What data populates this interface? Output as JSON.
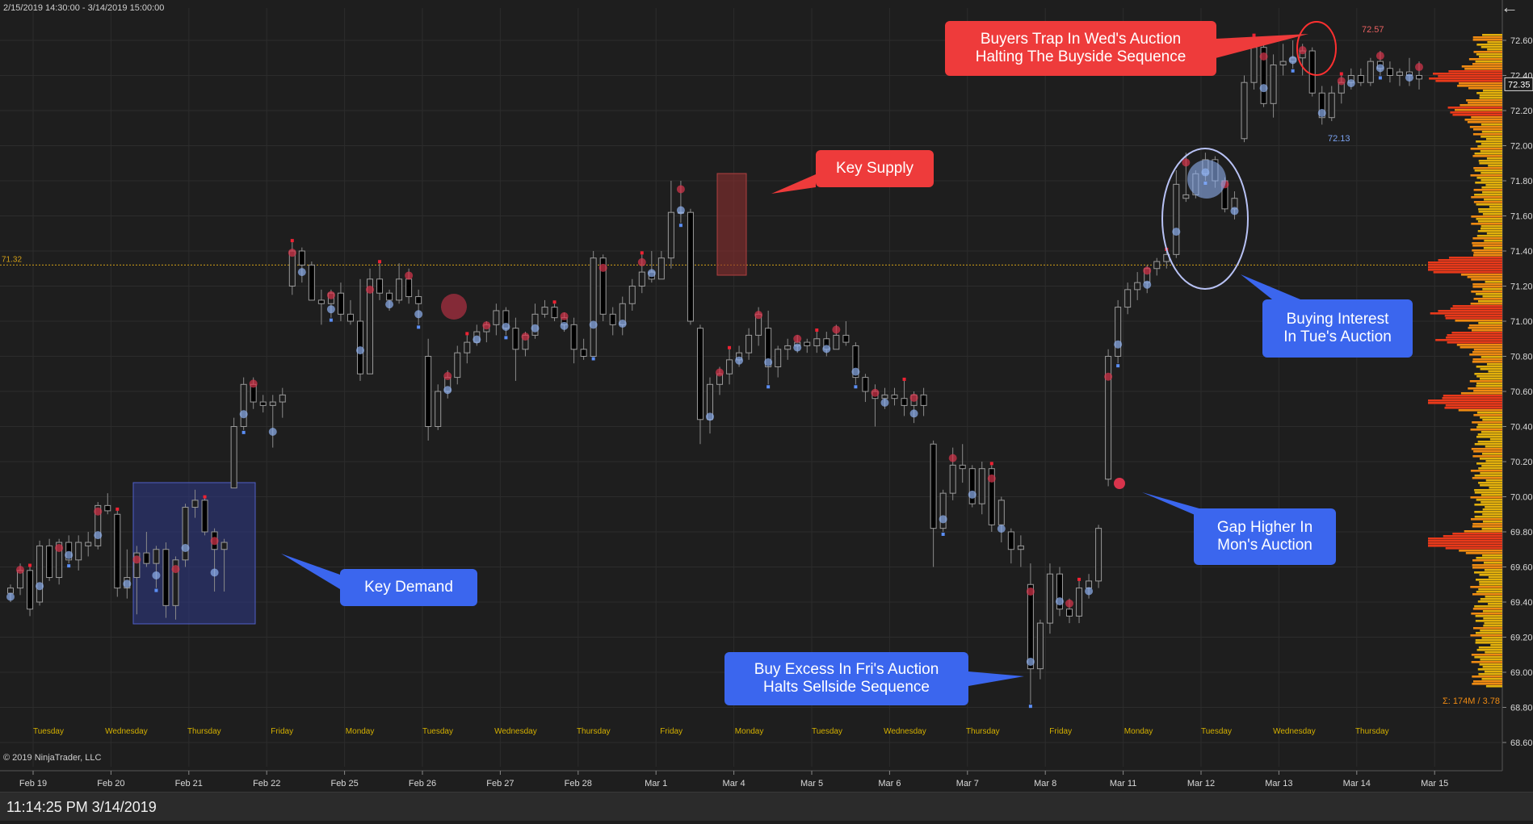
{
  "header": {
    "range_label": "2/15/2019 14:30:00 - 3/14/2019 15:00:00",
    "back_icon": "arrow-left-icon"
  },
  "footer": {
    "copyright": "© 2019 NinjaTrader, LLC",
    "status_time": "11:14:25 PM 3/14/2019"
  },
  "colors": {
    "background": "#1e1e1e",
    "grid": "#2c2c2c",
    "bull_body": "#1e1e1e",
    "bear_body": "#000000",
    "wick": "#8a8a8a",
    "buy_bubble": "#8fb0f0",
    "sell_bubble": "#d8344c",
    "reference_line": "#d4a017",
    "day_label": "#d4b000",
    "callout_red": "#ee3b3b",
    "callout_blue": "#3b66ee"
  },
  "chart_data": {
    "type": "candlestick",
    "title": "",
    "ylim": [
      68.55,
      72.75
    ],
    "y_ticks": [
      "72.60",
      "72.40",
      "72.20",
      "72.00",
      "71.80",
      "71.60",
      "71.40",
      "71.20",
      "71.00",
      "70.80",
      "70.60",
      "70.40",
      "70.20",
      "70.00",
      "69.80",
      "69.60",
      "69.40",
      "69.20",
      "69.00",
      "68.80",
      "68.60"
    ],
    "current_price": "72.35",
    "reference_line": {
      "value": 71.32,
      "label": "71.32"
    },
    "date_labels": [
      "Feb 19",
      "Feb 20",
      "Feb 21",
      "Feb 22",
      "Feb 25",
      "Feb 26",
      "Feb 27",
      "Feb 28",
      "Mar 1",
      "Mar 4",
      "Mar 5",
      "Mar 6",
      "Mar 7",
      "Mar 8",
      "Mar 11",
      "Mar 12",
      "Mar 13",
      "Mar 14",
      "Mar 15"
    ],
    "day_labels": [
      "Tuesday",
      "Wednesday",
      "Thursday",
      "Friday",
      "Monday",
      "Tuesday",
      "Wednesday",
      "Thursday",
      "Friday",
      "Monday",
      "Tuesday",
      "Wednesday",
      "Thursday",
      "Friday",
      "Monday",
      "Tuesday",
      "Wednesday",
      "Thursday"
    ],
    "annotations": {
      "high_label": "72.57",
      "low_label": "72.13",
      "volume_label": "Σ: 174M / 3.78"
    },
    "candles": [
      [
        69.45,
        69.5,
        69.4,
        69.48
      ],
      [
        69.48,
        69.62,
        69.44,
        69.58
      ],
      [
        69.58,
        69.6,
        69.32,
        69.36
      ],
      [
        69.4,
        69.75,
        69.38,
        69.72
      ],
      [
        69.72,
        69.76,
        69.52,
        69.54
      ],
      [
        69.54,
        69.76,
        69.5,
        69.74
      ],
      [
        69.74,
        69.78,
        69.62,
        69.64
      ],
      [
        69.64,
        69.78,
        69.58,
        69.74
      ],
      [
        69.72,
        69.8,
        69.66,
        69.74
      ],
      [
        69.72,
        69.97,
        69.7,
        69.95
      ],
      [
        69.95,
        70.02,
        69.9,
        69.92
      ],
      [
        69.9,
        69.92,
        69.43,
        69.48
      ],
      [
        69.48,
        69.7,
        69.42,
        69.54
      ],
      [
        69.54,
        69.72,
        69.33,
        69.68
      ],
      [
        69.68,
        69.8,
        69.6,
        69.62
      ],
      [
        69.62,
        69.72,
        69.48,
        69.7
      ],
      [
        69.7,
        69.74,
        69.31,
        69.38
      ],
      [
        69.38,
        69.66,
        69.3,
        69.64
      ],
      [
        69.64,
        69.96,
        69.6,
        69.94
      ],
      [
        69.94,
        70.04,
        69.88,
        69.98
      ],
      [
        69.98,
        69.99,
        69.78,
        69.8
      ],
      [
        69.8,
        69.82,
        69.46,
        69.7
      ],
      [
        69.7,
        69.76,
        69.46,
        69.74
      ],
      [
        70.05,
        70.45,
        70.05,
        70.4
      ],
      [
        70.4,
        70.68,
        70.38,
        70.64
      ],
      [
        70.64,
        70.68,
        70.5,
        70.54
      ],
      [
        70.54,
        70.58,
        70.48,
        70.52
      ],
      [
        70.52,
        70.58,
        70.28,
        70.54
      ],
      [
        70.54,
        70.62,
        70.45,
        70.58
      ],
      [
        71.2,
        71.45,
        71.15,
        71.4
      ],
      [
        71.4,
        71.42,
        71.22,
        71.32
      ],
      [
        71.32,
        71.34,
        71.12,
        71.12
      ],
      [
        71.12,
        71.18,
        70.98,
        71.1
      ],
      [
        71.1,
        71.18,
        71.02,
        71.16
      ],
      [
        71.16,
        71.22,
        71.0,
        71.04
      ],
      [
        71.04,
        71.12,
        70.98,
        71.0
      ],
      [
        71.0,
        71.24,
        70.66,
        70.7
      ],
      [
        70.7,
        71.3,
        70.7,
        71.24
      ],
      [
        71.24,
        71.33,
        71.12,
        71.16
      ],
      [
        71.16,
        71.18,
        71.06,
        71.12
      ],
      [
        71.12,
        71.33,
        71.1,
        71.24
      ],
      [
        71.24,
        71.3,
        71.1,
        71.14
      ],
      [
        71.14,
        71.18,
        70.98,
        71.1
      ],
      [
        70.8,
        70.9,
        70.32,
        70.4
      ],
      [
        70.4,
        70.64,
        70.38,
        70.6
      ],
      [
        70.6,
        70.72,
        70.56,
        70.68
      ],
      [
        70.68,
        70.86,
        70.64,
        70.82
      ],
      [
        70.82,
        70.92,
        70.76,
        70.88
      ],
      [
        70.88,
        70.98,
        70.86,
        70.94
      ],
      [
        70.94,
        71.0,
        70.88,
        70.98
      ],
      [
        70.98,
        71.1,
        70.92,
        71.06
      ],
      [
        71.06,
        71.08,
        70.92,
        70.96
      ],
      [
        70.96,
        71.02,
        70.66,
        70.84
      ],
      [
        70.84,
        70.94,
        70.8,
        70.92
      ],
      [
        70.92,
        71.1,
        70.9,
        71.04
      ],
      [
        71.04,
        71.12,
        71.02,
        71.08
      ],
      [
        71.08,
        71.1,
        71.0,
        71.02
      ],
      [
        71.02,
        71.05,
        70.94,
        70.98
      ],
      [
        70.98,
        71.02,
        70.76,
        70.84
      ],
      [
        70.84,
        70.9,
        70.78,
        70.8
      ],
      [
        70.8,
        71.4,
        70.8,
        71.36
      ],
      [
        71.36,
        71.38,
        71.0,
        71.04
      ],
      [
        71.04,
        71.08,
        70.92,
        70.98
      ],
      [
        70.98,
        71.14,
        70.92,
        71.1
      ],
      [
        71.1,
        71.24,
        71.06,
        71.2
      ],
      [
        71.2,
        71.38,
        71.16,
        71.28
      ],
      [
        71.28,
        71.4,
        71.22,
        71.24
      ],
      [
        71.24,
        71.4,
        71.28,
        71.36
      ],
      [
        71.36,
        71.8,
        71.3,
        71.62
      ],
      [
        71.62,
        71.8,
        71.56,
        71.62
      ],
      [
        71.62,
        71.64,
        70.98,
        71.0
      ],
      [
        70.96,
        70.98,
        70.3,
        70.44
      ],
      [
        70.44,
        70.68,
        70.36,
        70.64
      ],
      [
        70.64,
        70.74,
        70.58,
        70.7
      ],
      [
        70.7,
        70.84,
        70.64,
        70.78
      ],
      [
        70.78,
        70.86,
        70.74,
        70.82
      ],
      [
        70.82,
        70.96,
        70.78,
        70.92
      ],
      [
        70.92,
        71.08,
        70.86,
        71.04
      ],
      [
        70.96,
        71.06,
        70.64,
        70.74
      ],
      [
        70.74,
        70.86,
        70.68,
        70.84
      ],
      [
        70.84,
        70.9,
        70.78,
        70.86
      ],
      [
        70.86,
        70.92,
        70.82,
        70.88
      ],
      [
        70.88,
        70.9,
        70.82,
        70.86
      ],
      [
        70.86,
        70.94,
        70.82,
        70.9
      ],
      [
        70.9,
        70.94,
        70.8,
        70.84
      ],
      [
        70.84,
        70.98,
        70.84,
        70.92
      ],
      [
        70.92,
        71.0,
        70.86,
        70.88
      ],
      [
        70.86,
        70.88,
        70.64,
        70.68
      ],
      [
        70.68,
        70.7,
        70.54,
        70.6
      ],
      [
        70.6,
        70.64,
        70.4,
        70.56
      ],
      [
        70.56,
        70.62,
        70.5,
        70.58
      ],
      [
        70.58,
        70.62,
        70.52,
        70.56
      ],
      [
        70.56,
        70.66,
        70.46,
        70.52
      ],
      [
        70.52,
        70.6,
        70.42,
        70.58
      ],
      [
        70.58,
        70.62,
        70.46,
        70.52
      ],
      [
        70.3,
        70.32,
        69.6,
        69.82
      ],
      [
        69.82,
        70.04,
        69.8,
        70.02
      ],
      [
        70.02,
        70.28,
        69.98,
        70.18
      ],
      [
        70.18,
        70.3,
        70.08,
        70.16
      ],
      [
        70.16,
        70.18,
        69.94,
        69.96
      ],
      [
        69.96,
        70.2,
        69.9,
        70.16
      ],
      [
        70.16,
        70.18,
        69.8,
        69.84
      ],
      [
        69.84,
        70.0,
        69.74,
        69.98
      ],
      [
        69.8,
        69.82,
        69.62,
        69.7
      ],
      [
        69.7,
        69.78,
        69.6,
        69.72
      ],
      [
        69.5,
        69.62,
        68.82,
        69.02
      ],
      [
        69.02,
        69.3,
        68.96,
        69.28
      ],
      [
        69.28,
        69.62,
        69.22,
        69.56
      ],
      [
        69.56,
        69.6,
        69.32,
        69.36
      ],
      [
        69.36,
        69.42,
        69.28,
        69.32
      ],
      [
        69.32,
        69.52,
        69.28,
        69.48
      ],
      [
        69.48,
        69.56,
        69.42,
        69.52
      ],
      [
        69.52,
        69.84,
        69.48,
        69.82
      ],
      [
        70.1,
        70.84,
        70.06,
        70.8
      ],
      [
        70.8,
        71.12,
        70.76,
        71.08
      ],
      [
        71.08,
        71.22,
        71.04,
        71.18
      ],
      [
        71.18,
        71.28,
        71.12,
        71.22
      ],
      [
        71.22,
        71.32,
        71.16,
        71.3
      ],
      [
        71.3,
        71.36,
        71.26,
        71.34
      ],
      [
        71.34,
        71.4,
        71.3,
        71.38
      ],
      [
        71.38,
        71.86,
        71.36,
        71.78
      ],
      [
        71.7,
        71.96,
        71.68,
        71.72
      ],
      [
        71.72,
        71.86,
        71.7,
        71.84
      ],
      [
        71.84,
        71.96,
        71.8,
        71.92
      ],
      [
        71.92,
        71.94,
        71.76,
        71.8
      ],
      [
        71.8,
        71.82,
        71.62,
        71.64
      ],
      [
        71.64,
        71.74,
        71.58,
        71.7
      ],
      [
        72.04,
        72.4,
        72.02,
        72.36
      ],
      [
        72.36,
        72.62,
        72.32,
        72.56
      ],
      [
        72.56,
        72.58,
        72.22,
        72.24
      ],
      [
        72.24,
        72.52,
        72.16,
        72.46
      ],
      [
        72.46,
        72.58,
        72.4,
        72.48
      ],
      [
        72.48,
        72.6,
        72.44,
        72.5
      ],
      [
        72.5,
        72.58,
        72.4,
        72.54
      ],
      [
        72.54,
        72.56,
        72.28,
        72.3
      ],
      [
        72.3,
        72.34,
        72.12,
        72.16
      ],
      [
        72.16,
        72.34,
        72.14,
        72.3
      ],
      [
        72.3,
        72.4,
        72.24,
        72.36
      ],
      [
        72.36,
        72.44,
        72.32,
        72.4
      ],
      [
        72.4,
        72.44,
        72.34,
        72.36
      ],
      [
        72.36,
        72.5,
        72.34,
        72.48
      ],
      [
        72.48,
        72.54,
        72.4,
        72.44
      ],
      [
        72.44,
        72.48,
        72.36,
        72.4
      ],
      [
        72.4,
        72.44,
        72.34,
        72.42
      ],
      [
        72.42,
        72.5,
        72.34,
        72.4
      ],
      [
        72.4,
        72.48,
        72.32,
        72.38
      ]
    ]
  },
  "callouts": [
    {
      "id": "buyers-trap",
      "color": "red",
      "text": "Buyers Trap In Wed's Auction\nHalting The Buyside Sequence"
    },
    {
      "id": "key-supply",
      "color": "red",
      "text": "Key Supply"
    },
    {
      "id": "buying-interest",
      "color": "blue",
      "text": "Buying Interest\nIn Tue's Auction"
    },
    {
      "id": "gap-higher",
      "color": "blue",
      "text": "Gap Higher In\nMon's Auction"
    },
    {
      "id": "key-demand",
      "color": "blue",
      "text": "Key Demand"
    },
    {
      "id": "buy-excess",
      "color": "blue",
      "text": "Buy Excess In Fri's Auction\nHalts Sellside Sequence"
    }
  ]
}
